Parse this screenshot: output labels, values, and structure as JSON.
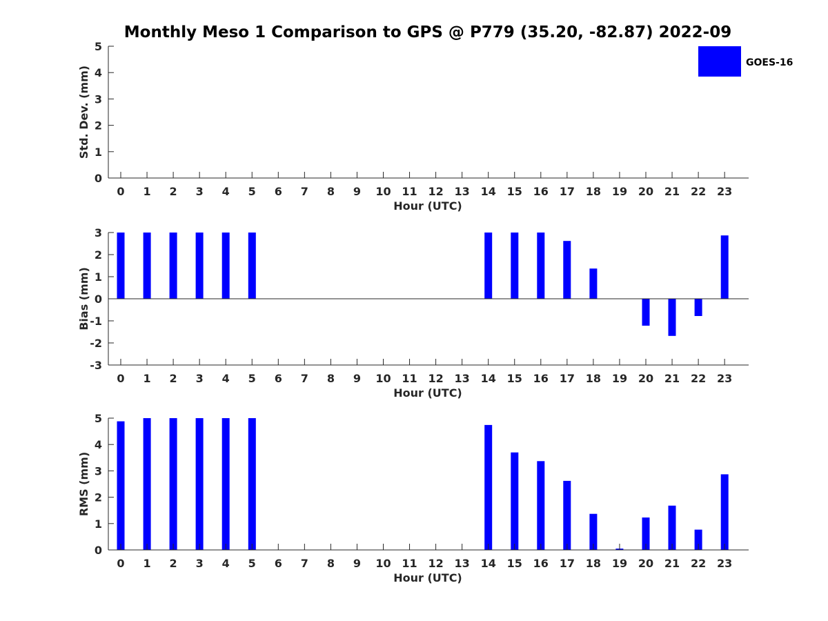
{
  "chart_data": {
    "type": "bar",
    "title": "Monthly Meso 1 Comparison to GPS @ P779 (35.20, -82.87) 2022-09",
    "legend": {
      "label": "GOES-16",
      "color": "#0000ff",
      "position": "top-right"
    },
    "bar_color": "#0000ff",
    "categories": [
      "0",
      "1",
      "2",
      "3",
      "4",
      "5",
      "6",
      "7",
      "8",
      "9",
      "10",
      "11",
      "12",
      "13",
      "14",
      "15",
      "16",
      "17",
      "18",
      "19",
      "20",
      "21",
      "22",
      "23"
    ],
    "panels": [
      {
        "name": "std-dev",
        "ylabel": "Std. Dev. (mm)",
        "xlabel": "Hour (UTC)",
        "ylim": [
          0,
          5
        ],
        "yticks": [
          "0",
          "1",
          "2",
          "3",
          "4",
          "5"
        ],
        "values": [
          0,
          0,
          0,
          0,
          0,
          0,
          0,
          0,
          0,
          0,
          0,
          0,
          0,
          0,
          0,
          0,
          0,
          0,
          0,
          0,
          0,
          0,
          0,
          0
        ]
      },
      {
        "name": "bias",
        "ylabel": "Bias (mm)",
        "xlabel": "Hour (UTC)",
        "ylim": [
          -3,
          3
        ],
        "yticks": [
          "-3",
          "-2",
          "-1",
          "0",
          "1",
          "2",
          "3"
        ],
        "values": [
          3,
          3,
          3,
          3,
          3,
          3,
          0,
          0,
          0,
          0,
          0,
          0,
          0,
          0,
          3,
          3,
          3,
          2.62,
          1.37,
          0,
          -1.22,
          -1.68,
          -0.78,
          2.87
        ]
      },
      {
        "name": "rms",
        "ylabel": "RMS (mm)",
        "xlabel": "Hour (UTC)",
        "ylim": [
          0,
          5
        ],
        "yticks": [
          "0",
          "1",
          "2",
          "3",
          "4",
          "5"
        ],
        "values": [
          4.88,
          5,
          5,
          5,
          5,
          5,
          0,
          0,
          0,
          0,
          0,
          0,
          0,
          0,
          4.74,
          3.7,
          3.37,
          2.62,
          1.37,
          0.05,
          1.23,
          1.68,
          0.77,
          2.87
        ]
      }
    ]
  }
}
